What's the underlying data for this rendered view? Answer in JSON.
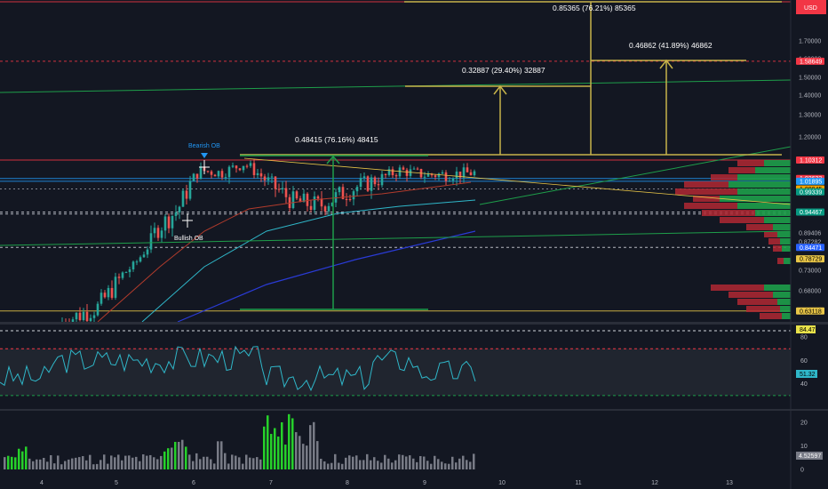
{
  "currency": "USD",
  "chart_data": {
    "type": "candlestick",
    "price_axis": {
      "ticks": [
        "1.70000",
        "1.60000",
        "1.50000",
        "1.40000",
        "1.30000",
        "1.20000",
        "1.02519",
        "0.89406",
        "0.87282",
        "0.73000",
        "0.68000"
      ],
      "ylim": [
        0.605,
        1.85
      ]
    },
    "price_labels": [
      {
        "text": "1.58649",
        "color": "#f23645",
        "price": 1.58649
      },
      {
        "text": "1.10312",
        "color": "#f23645",
        "price": 1.10312
      },
      {
        "text": "1.02633",
        "color": "#f23645",
        "price": 1.02633
      },
      {
        "text": "1.01895",
        "color": "#2196f3",
        "price": 1.01895
      },
      {
        "text": "1.00045",
        "color": "#f7a600",
        "price": 1.00045
      },
      {
        "text": "0.99339",
        "color": "#089981",
        "price": 0.99339
      },
      {
        "text": "0.94467",
        "color": "#089981",
        "price": 0.94467
      },
      {
        "text": "0.84471",
        "color": "#2962ff",
        "price": 0.84471
      },
      {
        "text": "0.78729",
        "color": "#e8c547",
        "price": 0.78729
      },
      {
        "text": "0.63118",
        "color": "#e8c547",
        "price": 0.63118
      }
    ],
    "x_axis": {
      "ticks": [
        "4",
        "5",
        "6",
        "7",
        "8",
        "9",
        "10",
        "11",
        "12",
        "13"
      ]
    },
    "annotations": {
      "measure_main": "0.48415 (76.16%) 48415",
      "measure_a": "0.32887 (29.40%) 32887",
      "measure_b": "0.46862 (41.89%) 46862",
      "measure_c": "0.85365 (76.21%) 85365",
      "bearish_ob": "Bearish OB",
      "bullish_ob": "Bullish OB"
    },
    "rsi": {
      "ticks": [
        "80",
        "60",
        "40"
      ],
      "label": "84.47",
      "value_label": "51.32",
      "levels": [
        70,
        30
      ]
    },
    "volume": {
      "ticks": [
        "20",
        "10",
        "0"
      ],
      "value_label": "4.52597"
    }
  }
}
